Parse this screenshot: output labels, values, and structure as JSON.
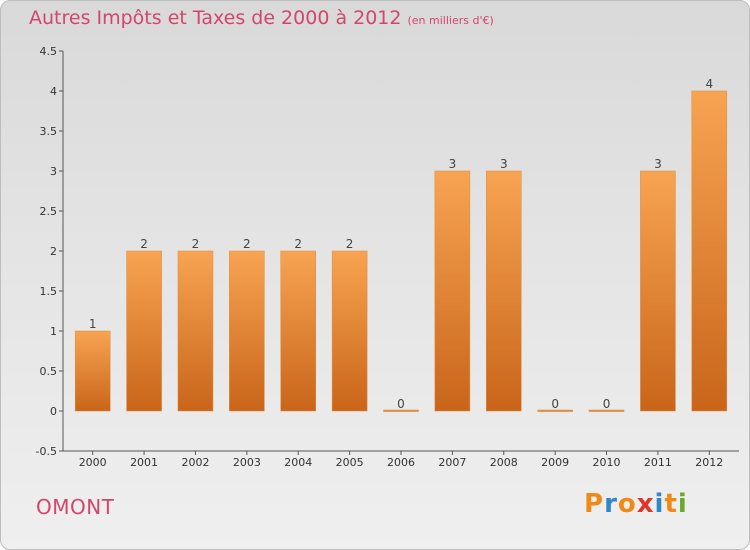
{
  "title": "Autres Impôts et Taxes de 2000 à 2012",
  "subtitle": "(en milliers d'€)",
  "commune": "OMONT",
  "logo_text": "Proxiti",
  "colors": {
    "title": "#d2466b",
    "bar_light": "#f7a452",
    "bar_dark": "#c9651a",
    "logo": [
      "#f08a16",
      "#2f86c8",
      "#f08a16",
      "#e0362a",
      "#2f86c8",
      "#f08a16",
      "#6aaa2a"
    ]
  },
  "chart_data": {
    "type": "bar",
    "categories": [
      "2000",
      "2001",
      "2002",
      "2003",
      "2004",
      "2005",
      "2006",
      "2007",
      "2008",
      "2009",
      "2010",
      "2011",
      "2012"
    ],
    "values": [
      1,
      2,
      2,
      2,
      2,
      2,
      0,
      3,
      3,
      0,
      0,
      3,
      4
    ],
    "data_labels": [
      "1",
      "2",
      "2",
      "2",
      "2",
      "2",
      "0",
      "3",
      "3",
      "0",
      "0",
      "3",
      "4"
    ],
    "ylim": [
      -0.5,
      4.5
    ],
    "yticks": [
      -0.5,
      0,
      0.5,
      1,
      1.5,
      2,
      2.5,
      3,
      3.5,
      4,
      4.5
    ],
    "ytick_labels": [
      "-0.5",
      "0",
      "0.5",
      "1",
      "1.5",
      "2",
      "2.5",
      "3",
      "3.5",
      "4",
      "4.5"
    ],
    "xlabel": "",
    "ylabel": "",
    "grid": false
  }
}
